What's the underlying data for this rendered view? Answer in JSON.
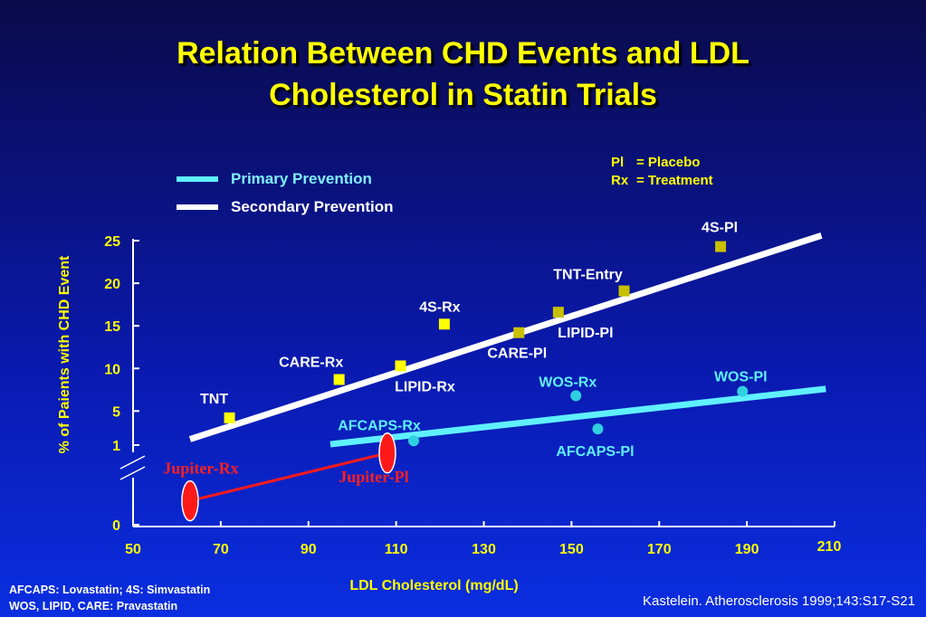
{
  "title_line1": "Relation Between CHD Events and LDL",
  "title_line2": "Cholesterol in Statin Trials",
  "legend": {
    "primary": "Primary Prevention",
    "secondary": "Secondary Prevention"
  },
  "abbreviations": [
    {
      "key": "Pl",
      "value": "= Placebo"
    },
    {
      "key": "Rx",
      "value": "= Treatment"
    }
  ],
  "footnote_line1": "AFCAPS: Lovastatin; 4S: Simvastatin",
  "footnote_line2": "WOS, LIPID, CARE: Pravastatin",
  "citation": "Kastelein. Atherosclerosis 1999;143:S17-S21",
  "colors": {
    "primary_line": "#5ff0ff",
    "secondary_line": "#ffffff",
    "secondary_marker": "#ffff00",
    "secondary_marker_alt": "#c8c000",
    "primary_marker": "#30d0e0",
    "jupiter": "#ff1a1a",
    "jupiter_label": "#ff2020",
    "axis_text": "#ffff00"
  },
  "chart_data": {
    "type": "scatter",
    "xlabel": "LDL Cholesterol (mg/dL)",
    "ylabel": "% of Paients with CHD Event",
    "xlim": [
      50,
      210
    ],
    "x_ticks": [
      "50",
      "70",
      "90",
      "110",
      "130",
      "150",
      "170",
      "190",
      "210"
    ],
    "y_ticks": [
      "0",
      "1",
      "5",
      "10",
      "15",
      "20",
      "25"
    ],
    "points": [
      {
        "label": "TNT",
        "x": 72,
        "y": 4.2,
        "group": "secondary"
      },
      {
        "label": "CARE-Rx",
        "x": 97,
        "y": 8.7,
        "group": "secondary"
      },
      {
        "label": "LIPID-Rx",
        "x": 111,
        "y": 10.3,
        "group": "secondary"
      },
      {
        "label": "4S-Rx",
        "x": 121,
        "y": 15.2,
        "group": "secondary"
      },
      {
        "label": "CARE-Pl",
        "x": 138,
        "y": 14.2,
        "group": "secondary"
      },
      {
        "label": "LIPID-Pl",
        "x": 147,
        "y": 16.6,
        "group": "secondary"
      },
      {
        "label": "TNT-Entry",
        "x": 162,
        "y": 19.1,
        "group": "secondary"
      },
      {
        "label": "4S-Pl",
        "x": 184,
        "y": 24.3,
        "group": "secondary"
      },
      {
        "label": "AFCAPS-Rx",
        "x": 114,
        "y": 1.5,
        "group": "primary"
      },
      {
        "label": "WOS-Rx",
        "x": 151,
        "y": 6.8,
        "group": "primary"
      },
      {
        "label": "AFCAPS-Pl",
        "x": 156,
        "y": 2.9,
        "group": "primary"
      },
      {
        "label": "WOS-Pl",
        "x": 189,
        "y": 7.3,
        "group": "primary"
      },
      {
        "label": "Jupiter-Rx",
        "x": 63,
        "y": 0.3,
        "group": "jupiter"
      },
      {
        "label": "Jupiter-Pl",
        "x": 108,
        "y": 0.9,
        "group": "jupiter"
      }
    ],
    "trend_lines": [
      {
        "group": "secondary",
        "from": [
          63,
          1.7
        ],
        "to": [
          207,
          25.6
        ]
      },
      {
        "group": "primary",
        "from": [
          95,
          1.1
        ],
        "to": [
          208,
          7.6
        ]
      },
      {
        "group": "jupiter",
        "from": [
          63,
          0.3
        ],
        "to": [
          108,
          0.9
        ]
      }
    ]
  }
}
